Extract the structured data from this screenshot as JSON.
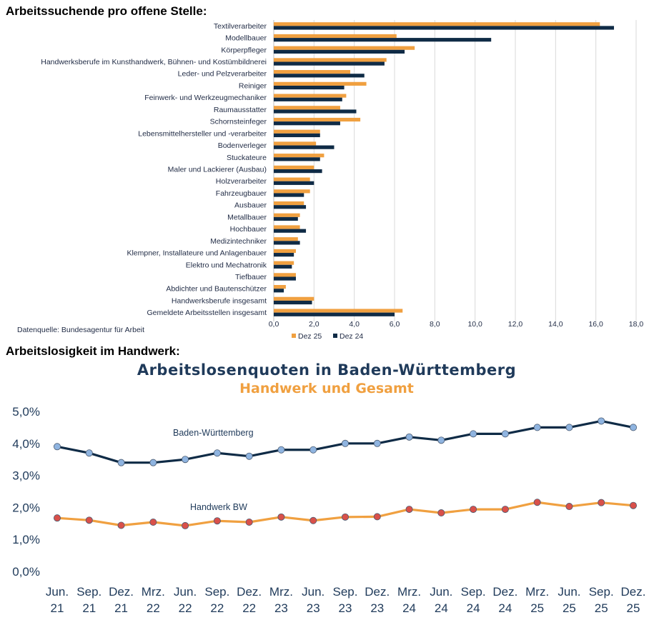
{
  "headings": {
    "bar_section": "Arbeitssuchende pro offene Stelle:",
    "line_section": "Arbeitslosigkeit im Handwerk:"
  },
  "colors": {
    "orange": "#f0a040",
    "navy": "#0f2b46",
    "grid": "#d9d9d9"
  },
  "chart_data": [
    {
      "type": "bar",
      "orientation": "horizontal",
      "title": "",
      "source": "Datenquelle: Bundesagentur für Arbeit",
      "categories": [
        "Textilverarbeiter",
        "Modellbauer",
        "Körperpfleger",
        "Handwerksberufe im Kunsthandwerk, Bühnen- und Kostümbildnerei",
        "Leder- und Pelzverarbeiter",
        "Reiniger",
        "Feinwerk- und Werkzeugmechaniker",
        "Raumausstatter",
        "Schornsteinfeger",
        "Lebensmittelhersteller und -verarbeiter",
        "Bodenverleger",
        "Stuckateure",
        "Maler und Lackierer (Ausbau)",
        "Holzverarbeiter",
        "Fahrzeugbauer",
        "Ausbauer",
        "Metallbauer",
        "Hochbauer",
        "Medizintechniker",
        "Klempner, Installateure und Anlagenbauer",
        "Elektro und Mechatronik",
        "Tiefbauer",
        "Abdichter und Bautenschützer",
        "Handwerksberufe insgesamt",
        "Gemeldete Arbeitsstellen insgesamt"
      ],
      "series": [
        {
          "name": "Dez 25",
          "color": "#f0a040",
          "values": [
            16.2,
            6.1,
            7.0,
            5.6,
            3.8,
            4.6,
            3.6,
            3.3,
            4.3,
            2.3,
            2.1,
            2.5,
            2.0,
            1.8,
            1.8,
            1.5,
            1.3,
            1.3,
            1.2,
            1.1,
            1.0,
            1.1,
            0.6,
            2.0,
            6.4
          ]
        },
        {
          "name": "Dez 24",
          "color": "#0f2b46",
          "values": [
            16.9,
            10.8,
            6.5,
            5.5,
            4.5,
            3.5,
            3.4,
            4.1,
            3.3,
            2.3,
            3.0,
            2.3,
            2.4,
            2.0,
            1.5,
            1.6,
            1.2,
            1.6,
            1.3,
            1.0,
            0.9,
            1.1,
            0.5,
            1.9,
            6.0
          ]
        }
      ],
      "xlim": [
        0,
        18
      ],
      "xticks": [
        "0,0",
        "2,0",
        "4,0",
        "6,0",
        "8,0",
        "10,0",
        "12,0",
        "14,0",
        "16,0",
        "18,0"
      ],
      "legend": [
        "Dez 25",
        "Dez 24"
      ],
      "legend_position": "bottom"
    },
    {
      "type": "line",
      "title": "Arbeitslosenquoten in Baden-Württemberg",
      "subtitle": "Handwerk und Gesamt",
      "x": [
        [
          "Jun.",
          "21"
        ],
        [
          "Sep.",
          "21"
        ],
        [
          "Dez.",
          "21"
        ],
        [
          "Mrz.",
          "22"
        ],
        [
          "Jun.",
          "22"
        ],
        [
          "Sep.",
          "22"
        ],
        [
          "Dez.",
          "22"
        ],
        [
          "Mrz.",
          "23"
        ],
        [
          "Jun.",
          "23"
        ],
        [
          "Sep.",
          "23"
        ],
        [
          "Dez.",
          "23"
        ],
        [
          "Mrz.",
          "24"
        ],
        [
          "Jun.",
          "24"
        ],
        [
          "Sep.",
          "24"
        ],
        [
          "Dez.",
          "24"
        ],
        [
          "Mrz.",
          "25"
        ],
        [
          "Jun.",
          "25"
        ],
        [
          "Sep.",
          "25"
        ],
        [
          "Dez.",
          "25"
        ]
      ],
      "series": [
        {
          "name": "Baden-Württemberg",
          "color": "#0f2b46",
          "marker": "#8fb4e0",
          "values": [
            3.9,
            3.7,
            3.4,
            3.4,
            3.5,
            3.7,
            3.6,
            3.8,
            3.8,
            4.0,
            4.0,
            4.2,
            4.1,
            4.3,
            4.3,
            4.5,
            4.5,
            4.7,
            4.5
          ]
        },
        {
          "name": "Handwerk BW",
          "color": "#f0a040",
          "marker": "#d9504a",
          "values": [
            1.67,
            1.6,
            1.44,
            1.54,
            1.43,
            1.58,
            1.54,
            1.7,
            1.59,
            1.7,
            1.71,
            1.94,
            1.83,
            1.94,
            1.94,
            2.16,
            2.03,
            2.15,
            2.06
          ]
        }
      ],
      "ylim": [
        0,
        5
      ],
      "yticks": [
        "0,0%",
        "1,0%",
        "2,0%",
        "3,0%",
        "4,0%",
        "5,0%"
      ],
      "grid": false
    }
  ]
}
